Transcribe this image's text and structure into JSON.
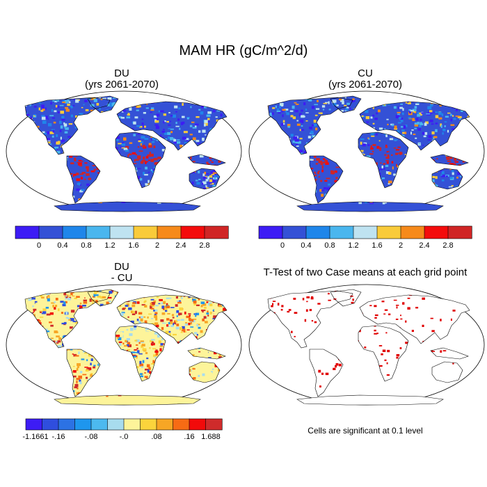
{
  "title": "MAM HR (gC/m^2/d)",
  "panels": [
    {
      "id": "du",
      "title_line1": "DU",
      "title_line2": "(yrs 2061-2070)"
    },
    {
      "id": "cu",
      "title_line1": "CU",
      "title_line2": "(yrs 2061-2070)"
    },
    {
      "id": "diff",
      "title_line1": "DU",
      "title_line2": "- CU"
    },
    {
      "id": "ttest",
      "title_line1": "T-Test of two Case means at each grid point",
      "title_line2": ""
    }
  ],
  "colorbar_top": {
    "colors": [
      "#3d1cf5",
      "#3451d6",
      "#1f86ea",
      "#4ab6ee",
      "#bfe3f1",
      "#f9cb3a",
      "#f68a1b",
      "#f40c0c",
      "#d02525"
    ],
    "labels": [
      "0",
      "0.4",
      "0.8",
      "1.2",
      "1.6",
      "2",
      "2.4",
      "2.8"
    ]
  },
  "colorbar_diff": {
    "colors": [
      "#3d1cf5",
      "#2f4ede",
      "#2c72e4",
      "#1e96ee",
      "#4cb9ef",
      "#a8dcee",
      "#fdf49a",
      "#fbd43c",
      "#f7a625",
      "#f76b14",
      "#f20a0a",
      "#cf2b2b"
    ],
    "labels": [
      "-1.1661",
      "-.16",
      "-.08",
      "-.0",
      ".08",
      ".16",
      "1.688"
    ]
  },
  "significance_note": "Cells are significant at 0.1 level",
  "map_colors": {
    "ocean": "#ffffff",
    "du_land": "#3451d6",
    "diff_land": "#f9cb3a",
    "sig": "#e00000"
  }
}
